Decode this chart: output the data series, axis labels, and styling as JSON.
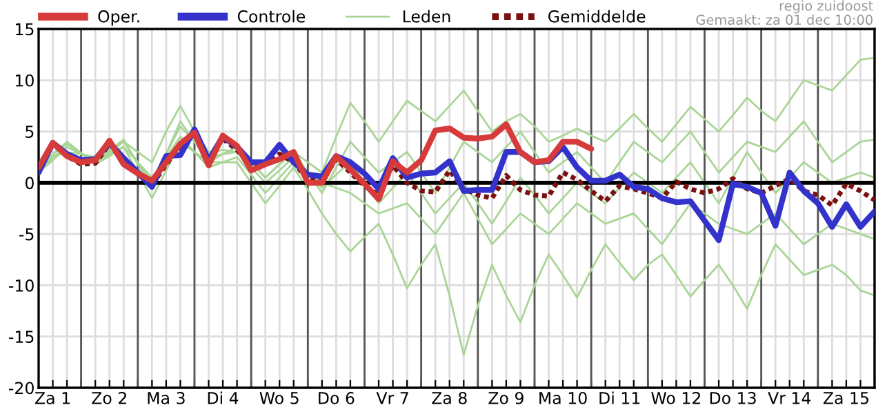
{
  "chart_data": {
    "type": "line",
    "categories": [
      null,
      "Za 1",
      null,
      null,
      null,
      "Zo 2",
      null,
      null,
      null,
      "Ma 3",
      null,
      null,
      null,
      "Di 4",
      null,
      null,
      null,
      "Wo 5",
      null,
      null,
      null,
      "Do 6",
      null,
      null,
      null,
      "Vr 7",
      null,
      null,
      null,
      "Za 8",
      null,
      null,
      null,
      "Zo 9",
      null,
      null,
      null,
      "Ma 10",
      null,
      null,
      null,
      "Di 11",
      null,
      null,
      null,
      "Wo 12",
      null,
      null,
      null,
      "Do 13",
      null,
      null,
      null,
      "Vr 14",
      null,
      null,
      null,
      "Za 15",
      null,
      null
    ],
    "series": [
      {
        "name": "Oper.",
        "color": "#d63a3a",
        "values": [
          1.5,
          3.9,
          2.6,
          2.0,
          2.2,
          4.1,
          1.8,
          0.9,
          0.2,
          2.0,
          3.8,
          4.9,
          1.7,
          4.6,
          3.6,
          1.2,
          1.8,
          2.3,
          3.0,
          0.0,
          0.0,
          2.6,
          1.3,
          -0.1,
          -1.6,
          2.1,
          1.0,
          2.2,
          5.1,
          5.3,
          4.4,
          4.3,
          4.5,
          5.7,
          3.0,
          2.0,
          2.2,
          4.0,
          4.0,
          3.3,
          null,
          null,
          null,
          null,
          null,
          null,
          null,
          null,
          null,
          null,
          null,
          null,
          null,
          null,
          null,
          null,
          null,
          null,
          null,
          null
        ]
      },
      {
        "name": "Controle",
        "color": "#3333cc",
        "values": [
          1.0,
          3.9,
          2.8,
          2.2,
          2.3,
          3.9,
          2.4,
          1.0,
          -0.4,
          2.6,
          2.7,
          5.2,
          2.2,
          4.5,
          3.5,
          2.0,
          2.0,
          3.7,
          2.0,
          0.8,
          0.6,
          2.6,
          2.0,
          0.9,
          -0.6,
          2.4,
          0.5,
          0.9,
          1.0,
          2.1,
          -0.8,
          -0.7,
          -0.7,
          3.0,
          3.0,
          2.0,
          2.1,
          3.5,
          1.5,
          0.2,
          0.2,
          0.8,
          -0.4,
          -0.6,
          -1.5,
          -1.9,
          -1.8,
          -3.7,
          -5.6,
          -0.1,
          -0.4,
          -1.0,
          -4.2,
          1.0,
          -0.8,
          -2.0,
          -4.3,
          -2.1,
          -4.3,
          -2.8
        ]
      },
      {
        "name": "Leden",
        "color": "#a9d596",
        "values": [
          1.5,
          2.5,
          3,
          2.8,
          2.5,
          3.2,
          4,
          3,
          2,
          5,
          7.5,
          5,
          3,
          3.2,
          3,
          2,
          0.5,
          1.8,
          3,
          2,
          1,
          4.5,
          7.8,
          6,
          4,
          6,
          8,
          7,
          6,
          7.5,
          9,
          7,
          5,
          6,
          6.7,
          5.5,
          4,
          4.6,
          5.3,
          4.6,
          4,
          5.3,
          6.7,
          5.3,
          4,
          5.7,
          7.4,
          6.2,
          5,
          6.6,
          8.3,
          7,
          6,
          8,
          10,
          9.5,
          9,
          10.5,
          12,
          12.2
        ]
      },
      {
        "name": "Gemiddelde",
        "color": "#7a1010",
        "line_style": "dotted",
        "values": [
          1.2,
          3.8,
          2.6,
          1.8,
          1.9,
          3.8,
          2.0,
          1.0,
          -0.2,
          1.8,
          3.5,
          4.8,
          2.3,
          4.3,
          3.2,
          1.6,
          1.9,
          2.8,
          2.0,
          0.3,
          0.2,
          2.3,
          1.0,
          -0.3,
          -1.2,
          1.7,
          0.0,
          -0.8,
          -0.9,
          1.2,
          -0.6,
          -1.2,
          -1.5,
          0.7,
          -0.7,
          -1.2,
          -1.3,
          1.0,
          0.3,
          -0.8,
          -1.8,
          -0.3,
          -0.6,
          -1.0,
          -1.5,
          0.1,
          -0.6,
          -1.0,
          -0.6,
          0.4,
          -0.6,
          -1.0,
          -0.3,
          0.4,
          -0.8,
          -1.2,
          -2.2,
          -0.1,
          -0.8,
          -1.7
        ]
      },
      {
        "color": "#a9d596",
        "values": [
          1,
          2.5,
          3.5,
          2.8,
          2,
          2.8,
          3.5,
          1,
          -1.5,
          1.2,
          4,
          3,
          2,
          2,
          2,
          0,
          -2,
          -0.3,
          1.5,
          -0.7,
          -3,
          -5,
          -6.7,
          -5.3,
          -4,
          -7,
          -10.3,
          -8,
          -6,
          -11,
          -16.8,
          -12,
          -8,
          -11,
          -13.6,
          -10,
          -7,
          -9,
          -11.2,
          -8.5,
          -6,
          -7.8,
          -9.5,
          -8,
          -7,
          -9,
          -11.1,
          -9.5,
          -8,
          -10,
          -12.3,
          -9,
          -6,
          -7.5,
          -9,
          -8.5,
          -8,
          -9,
          -10.5,
          -11
        ]
      },
      {
        "color": "#a9d596",
        "values": [
          1.2,
          2.8,
          3.8,
          2.9,
          2,
          3,
          4,
          2,
          0,
          2.8,
          5.5,
          4,
          2.5,
          2.8,
          3,
          1.5,
          0,
          1.2,
          2.5,
          1,
          -0.5,
          0.8,
          2,
          0,
          -2,
          -0.5,
          1,
          -1,
          -3,
          -1.5,
          0,
          -2,
          -4,
          -1.8,
          0.5,
          -1.2,
          -3,
          -1.5,
          0,
          -1,
          -2,
          -0.5,
          1,
          0,
          -1,
          0.5,
          2,
          0,
          -2,
          0.5,
          3,
          1,
          -1,
          0.5,
          2,
          1,
          0,
          0.5,
          1,
          0.5
        ]
      },
      {
        "color": "#a9d596",
        "values": [
          1.5,
          2.8,
          4,
          2.9,
          1.8,
          2.6,
          3.5,
          2,
          0.5,
          2.5,
          4.5,
          3,
          1.5,
          2,
          2.5,
          0.8,
          -1,
          0.5,
          2,
          1,
          0,
          -0.5,
          -1,
          -2,
          -3,
          -2.5,
          -2,
          -3.5,
          -5,
          -3,
          -1,
          -3.5,
          -6,
          -4.5,
          -3,
          -4,
          -5,
          -3.5,
          -2,
          -3,
          -4,
          -3.5,
          -3,
          -4.5,
          -6,
          -4,
          -2,
          -3,
          -4,
          -4.5,
          -5,
          -4,
          -3,
          -4.5,
          -6,
          -5,
          -4,
          -4.5,
          -5,
          -5.5
        ]
      },
      {
        "color": "#a9d596",
        "values": [
          1,
          2.2,
          3.5,
          2.8,
          2.2,
          3.2,
          4.2,
          1.8,
          -0.5,
          2.8,
          6,
          4,
          2,
          2.8,
          3.5,
          2,
          0.5,
          1.8,
          3,
          1,
          -1,
          1.5,
          4,
          2.5,
          1,
          2,
          3,
          1,
          -1,
          1.5,
          4,
          3,
          2,
          3.5,
          5,
          3,
          1,
          2,
          3,
          1.5,
          0,
          2,
          4,
          3,
          2,
          3.5,
          5,
          3,
          1,
          2.5,
          4,
          3.5,
          3,
          4.5,
          6,
          4,
          2,
          3,
          4,
          4.2
        ]
      }
    ],
    "ylim": [
      -20,
      15
    ],
    "yticks": [
      -20,
      -15,
      -10,
      -5,
      0,
      5,
      10,
      15
    ],
    "grid": true,
    "legend": "top",
    "marker": "none",
    "line_style": "solid",
    "ref_lines": [
      {
        "axis": "y",
        "value": 0,
        "color": "#000000"
      }
    ],
    "annotations": [
      "regio zuidoost",
      "Gemaakt: za 01 dec 10:00"
    ]
  }
}
